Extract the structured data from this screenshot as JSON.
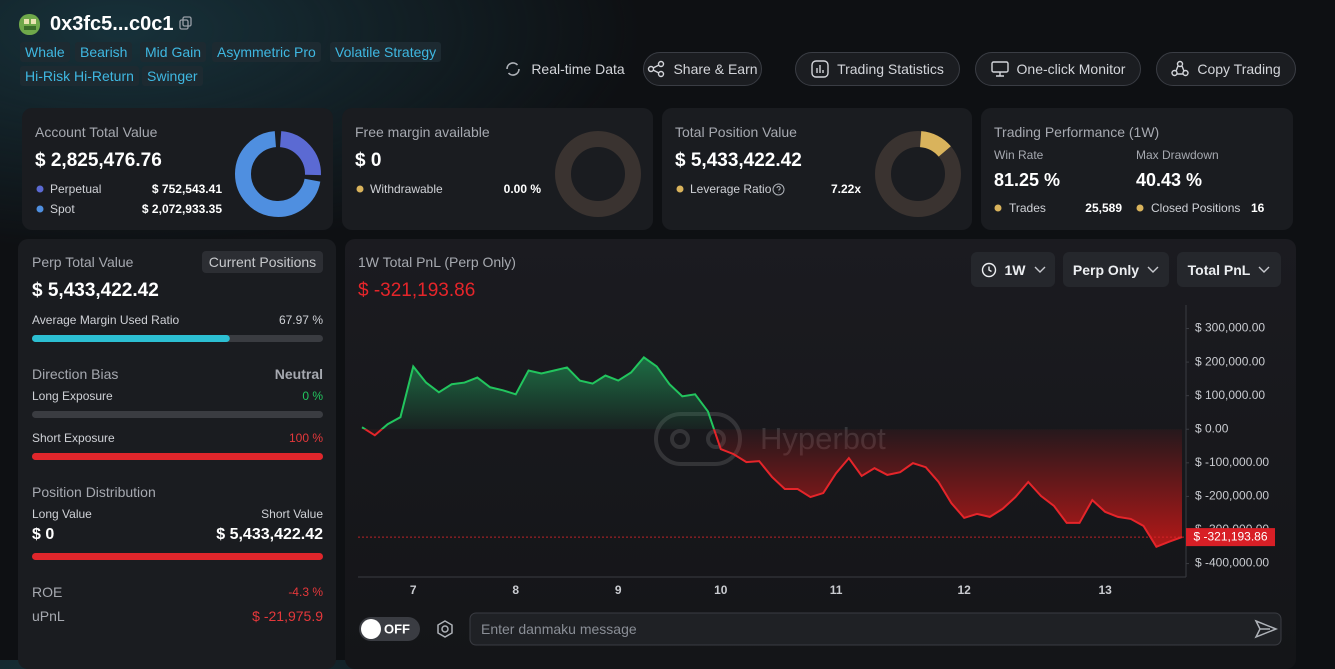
{
  "header": {
    "address": "0x3fc5...c0c1",
    "tags": [
      "Whale",
      "Bearish",
      "Mid Gain",
      "Asymmetric Pro",
      "Volatile Strategy",
      "Hi-Risk Hi-Return",
      "Swinger"
    ],
    "actions": [
      "Real-time Data",
      "Share & Earn",
      "Trading Statistics",
      "One-click Monitor",
      "Copy Trading"
    ]
  },
  "cards": {
    "account": {
      "title": "Account Total Value",
      "value": "$ 2,825,476.76",
      "perpetual_label": "Perpetual",
      "perpetual": {
        "value": 752543.41,
        "label": "$ 752,543.41"
      },
      "spot_label": "Spot",
      "spot": {
        "value": 2072933.35,
        "label": "$ 2,072,933.35"
      }
    },
    "margin": {
      "title": "Free margin available",
      "value": "$ 0",
      "withdrawable_label": "Withdrawable",
      "withdrawable": {
        "value": 0,
        "label": "0.00 %"
      }
    },
    "position": {
      "title": "Total Position Value",
      "value": "$ 5,433,422.42",
      "leverage_label": "Leverage Ratio",
      "leverage": {
        "value": 7.22,
        "label": "7.22x"
      }
    },
    "performance": {
      "title": "Trading Performance (1W)",
      "win_rate_label": "Win Rate",
      "win_rate": "81.25 %",
      "max_drawdown_label": "Max Drawdown",
      "max_drawdown": "40.43 %",
      "trades_label": "Trades",
      "trades": "25,589",
      "closed_label": "Closed Positions",
      "closed": "16"
    }
  },
  "positions": {
    "title": "Perp Total Value",
    "tab": "Current Positions",
    "value": "$ 5,433,422.42",
    "margin_ratio_label": "Average Margin Used Ratio",
    "margin_ratio": {
      "value": 67.97,
      "label": "67.97 %"
    },
    "bias_title": "Direction Bias",
    "bias": "Neutral",
    "long_exposure_label": "Long Exposure",
    "long_exposure": {
      "value": 0,
      "label": "0 %"
    },
    "short_exposure_label": "Short Exposure",
    "short_exposure": {
      "value": 100,
      "label": "100 %"
    },
    "distribution_title": "Position Distribution",
    "long_value_label": "Long Value",
    "long_value": {
      "value": 0,
      "label": "$ 0"
    },
    "short_value_label": "Short Value",
    "short_value": {
      "value": 5433422.42,
      "label": "$ 5,433,422.42"
    },
    "roe_label": "ROE",
    "roe": "-4.3 %",
    "upnl_label": "uPnL",
    "upnl": "$ -21,975.9"
  },
  "pnl": {
    "title": "1W Total PnL (Perp Only)",
    "value": "$ -321,193.86",
    "filters": [
      "1W",
      "Perp Only",
      "Total PnL"
    ],
    "watermark": "Hyperbot",
    "danmaku_toggle": "OFF",
    "danmaku_placeholder": "Enter danmaku message"
  },
  "chart_data": {
    "type": "line",
    "categories": [
      null,
      null,
      null,
      null,
      "7",
      null,
      null,
      null,
      null,
      null,
      null,
      null,
      "8",
      null,
      null,
      null,
      null,
      null,
      null,
      null,
      "9",
      null,
      null,
      null,
      null,
      null,
      null,
      null,
      "10",
      null,
      null,
      null,
      null,
      null,
      null,
      null,
      null,
      "11",
      null,
      null,
      null,
      null,
      null,
      null,
      null,
      null,
      null,
      "12",
      null,
      null,
      null,
      null,
      null,
      null,
      null,
      null,
      null,
      null,
      "13",
      null,
      null,
      null,
      null,
      null,
      null
    ],
    "series": [
      {
        "values": [
          6000,
          -18000,
          15000,
          36000,
          187000,
          139000,
          110000,
          134000,
          139000,
          154000,
          125000,
          116000,
          104000,
          175000,
          166000,
          175000,
          184000,
          145000,
          136000,
          160000,
          145000,
          169000,
          214000,
          187000,
          134000,
          98000,
          104000,
          53000,
          -59000,
          -74000,
          -98000,
          -95000,
          -142000,
          -178000,
          -178000,
          -202000,
          -190000,
          -131000,
          -86000,
          -139000,
          -116000,
          -136000,
          -128000,
          -101000,
          -113000,
          -157000,
          -220000,
          -264000,
          -252000,
          -261000,
          -237000,
          -202000,
          -157000,
          -199000,
          -228000,
          -279000,
          -279000,
          -211000,
          -246000,
          -261000,
          -267000,
          -288000,
          -350000,
          -335000,
          -321193.86
        ]
      }
    ],
    "color_up": "#22c55e",
    "color_down": "#e5252a",
    "ylim": [
      -440000,
      370000
    ],
    "yticks": [
      {
        "value": 300000,
        "label": "$ 300,000.00"
      },
      {
        "value": 200000,
        "label": "$ 200,000.00"
      },
      {
        "value": 100000,
        "label": "$ 100,000.00"
      },
      {
        "value": 0,
        "label": "$ 0.00"
      },
      {
        "value": -100000,
        "label": "$ -100,000.00"
      },
      {
        "value": -200000,
        "label": "$ -200,000.00"
      },
      {
        "value": -300000,
        "label": "$ -300,000.00"
      },
      {
        "value": -400000,
        "label": "$ -400,000.00"
      }
    ],
    "last_value_label": "$ -321,193.86"
  }
}
